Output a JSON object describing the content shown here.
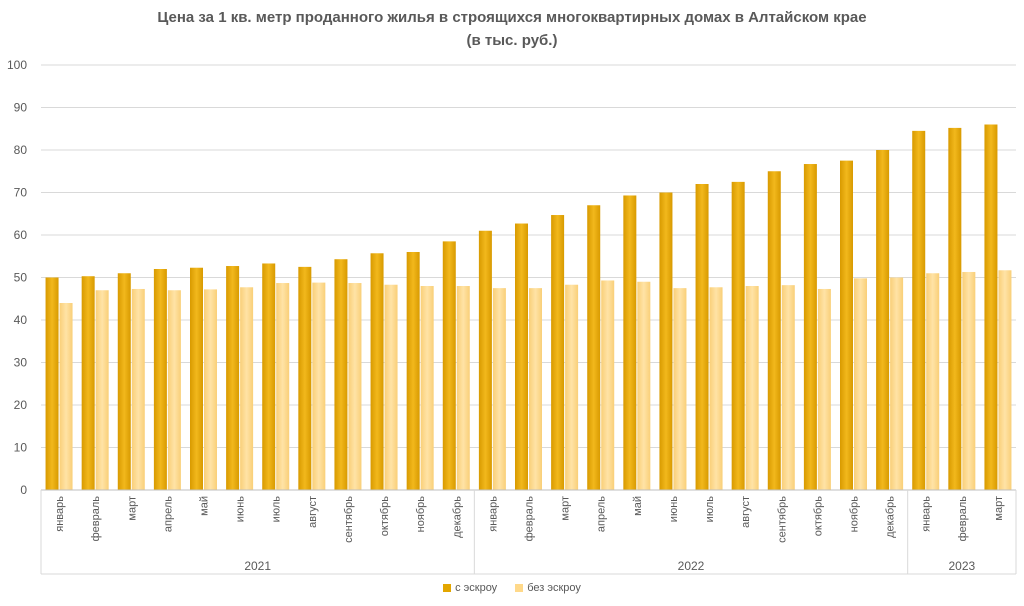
{
  "chart_data": {
    "type": "bar",
    "title": "Цена за 1 кв. метр проданного жилья в строящихся многоквартирных домах в Алтайском крае",
    "subtitle": "(в тыс. руб.)",
    "xlabel": "",
    "ylabel": "",
    "ylim": [
      0,
      100
    ],
    "yticks": [
      "0",
      "10",
      "20",
      "30",
      "40",
      "50",
      "60",
      "70",
      "80",
      "90",
      "100"
    ],
    "grid": true,
    "legend_position": "bottom",
    "groups": [
      {
        "label": "2021",
        "count": 12
      },
      {
        "label": "2022",
        "count": 12
      },
      {
        "label": "2023",
        "count": 3
      }
    ],
    "categories": [
      "январь",
      "февраль",
      "март",
      "апрель",
      "май",
      "июнь",
      "июль",
      "август",
      "сентябрь",
      "октябрь",
      "ноябрь",
      "декабрь",
      "январь",
      "февраль",
      "март",
      "апрель",
      "май",
      "июнь",
      "июль",
      "август",
      "сентябрь",
      "октябрь",
      "ноябрь",
      "декабрь",
      "январь",
      "февраль",
      "март"
    ],
    "series": [
      {
        "name": "с эскроу",
        "color": "#E3A600",
        "values": [
          50.0,
          50.3,
          51.0,
          52.0,
          52.3,
          52.7,
          53.3,
          52.5,
          54.3,
          55.7,
          56.0,
          58.5,
          61.0,
          62.7,
          64.7,
          67.0,
          69.3,
          70.0,
          72.0,
          72.5,
          75.0,
          76.7,
          77.5,
          80.0,
          84.5,
          85.2,
          86.0
        ]
      },
      {
        "name": "без эскроу",
        "color": "#FFD98A",
        "values": [
          44.0,
          47.0,
          47.3,
          47.0,
          47.2,
          47.7,
          48.7,
          48.8,
          48.7,
          48.3,
          48.0,
          48.0,
          47.5,
          47.5,
          48.3,
          49.3,
          49.0,
          47.5,
          47.7,
          48.0,
          48.2,
          47.3,
          49.8,
          50.0,
          51.0,
          51.3,
          51.7
        ]
      }
    ]
  }
}
